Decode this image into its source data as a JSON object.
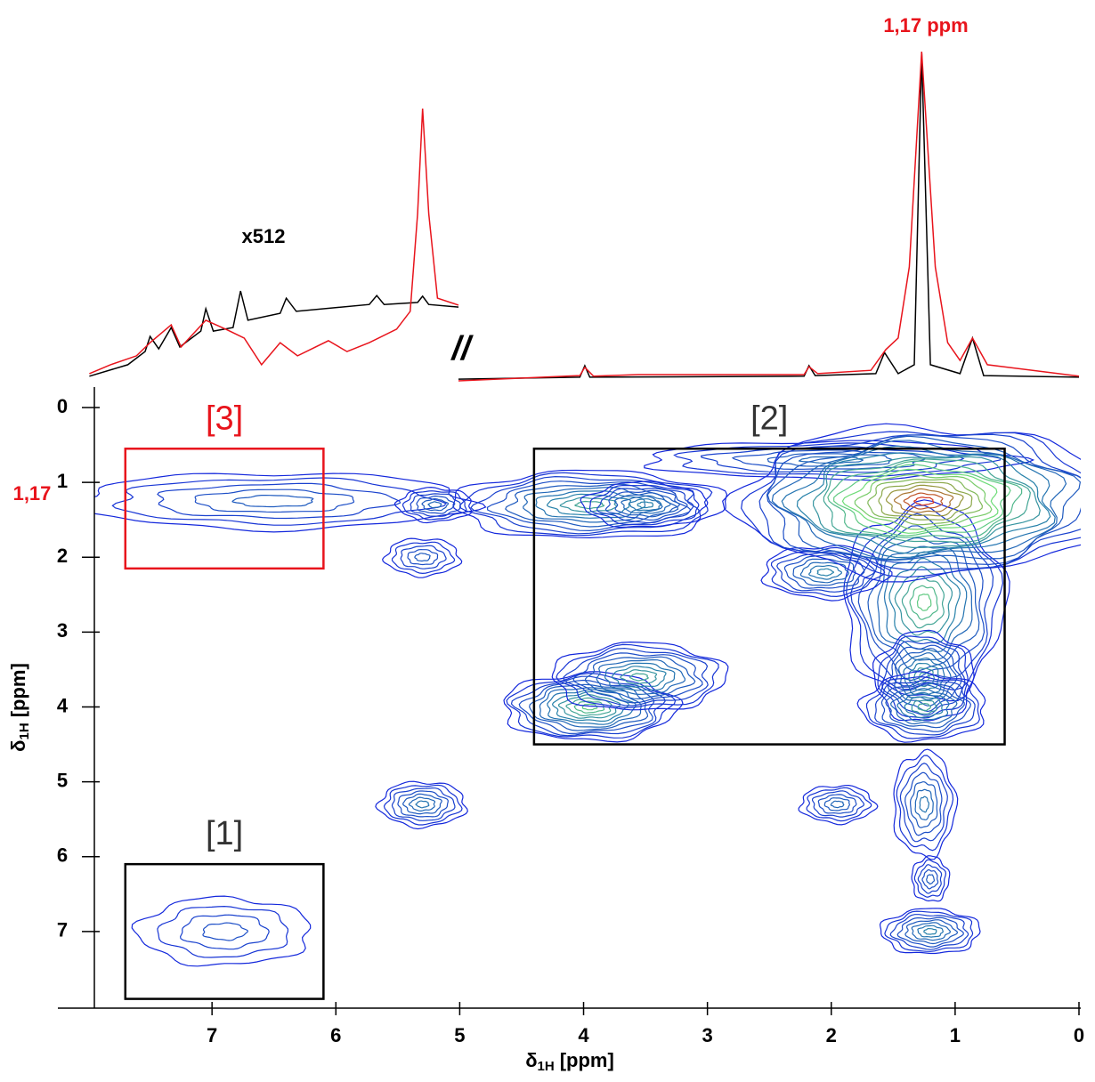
{
  "chart_data": [
    {
      "type": "spectrum",
      "annotation": "x512",
      "peak_label": "1,17 ppm",
      "break_label": "//",
      "xlim": [
        7.95,
        0
      ],
      "ylim": [
        0,
        100
      ],
      "series": [
        {
          "color": "#000000",
          "x": [
            7.99,
            7.68,
            7.54,
            7.5,
            7.43,
            7.33,
            7.26,
            7.09,
            7.05,
            6.99,
            6.83,
            6.77,
            6.71,
            6.45,
            6.4,
            6.32,
            5.73,
            5.67,
            5.61,
            5.34,
            5.3,
            5.25,
            5.01,
            null,
            5.01,
            4.03,
            3.99,
            3.95,
            2.22,
            2.18,
            2.13,
            1.64,
            1.57,
            1.46,
            1.33,
            1.27,
            1.2,
            0.96,
            0.86,
            0.77,
            0
          ],
          "values": [
            1.4,
            4.9,
            8.9,
            13.5,
            9.7,
            16.2,
            10.3,
            15.1,
            21.9,
            15.1,
            16.2,
            27.3,
            18.4,
            20.5,
            25.1,
            21.1,
            23.2,
            25.9,
            23.2,
            23.8,
            25.7,
            23.2,
            22.4,
            null,
            0.5,
            1.1,
            4.6,
            1.1,
            1.4,
            4.6,
            1.6,
            2.2,
            8.6,
            2.2,
            4.9,
            99.5,
            4.9,
            2.2,
            13,
            1.6,
            1.1
          ]
        },
        {
          "color": "#e8141c",
          "x": [
            7.99,
            7.82,
            7.61,
            7.5,
            7.33,
            7.25,
            7.05,
            6.89,
            6.74,
            6.6,
            6.45,
            6.31,
            6.06,
            5.91,
            5.73,
            5.51,
            5.4,
            5.34,
            5.3,
            5.25,
            5.18,
            5.01,
            null,
            5.01,
            4.03,
            3.99,
            3.92,
            3.56,
            2.22,
            2.18,
            2.11,
            1.68,
            1.56,
            1.46,
            1.37,
            1.27,
            1.16,
            1.06,
            0.96,
            0.86,
            0.74,
            0
          ],
          "values": [
            2.2,
            4.9,
            7.6,
            11.6,
            17,
            10.3,
            18.4,
            15.7,
            13,
            4.9,
            11.6,
            7.6,
            12.2,
            8.9,
            11.6,
            15.7,
            21.1,
            50.8,
            82.7,
            50.8,
            25.1,
            23,
            null,
            0,
            1.6,
            4.1,
            1.4,
            1.9,
            1.9,
            4.3,
            2.2,
            3.2,
            9.5,
            13,
            34.6,
            100,
            34.6,
            11.6,
            6.2,
            13,
            4.9,
            1.4
          ]
        }
      ]
    },
    {
      "type": "contour",
      "xlabel": {
        "symbol": "δ",
        "subscript": "1H",
        "unit": "[ppm]"
      },
      "ylabel": {
        "symbol": "δ",
        "subscript": "1H",
        "unit": "[ppm]"
      },
      "xlim": [
        7.95,
        0
      ],
      "xticks": [
        7,
        6,
        5,
        4,
        3,
        2,
        1,
        0
      ],
      "ylim": [
        0,
        8
      ],
      "yticks": [
        0,
        1,
        2,
        3,
        4,
        5,
        6,
        7
      ],
      "y_annotation": {
        "value": 1.17,
        "label": "1,17",
        "color": "#e8141c"
      },
      "boxes": [
        {
          "label": "[1]",
          "x": [
            7.7,
            6.1
          ],
          "y": [
            6.1,
            7.9
          ],
          "color": "#000000"
        },
        {
          "label": "[2]",
          "x": [
            4.4,
            0.6
          ],
          "y": [
            0.55,
            4.5
          ],
          "color": "#000000"
        },
        {
          "label": "[3]",
          "x": [
            7.7,
            6.1
          ],
          "y": [
            0.55,
            2.15
          ],
          "color": "#e8141c"
        }
      ],
      "peaks": [
        {
          "x": 6.5,
          "y": 1.25,
          "levels": 5,
          "width": 3.2,
          "height": 0.75
        },
        {
          "x": 2.0,
          "y": 0.7,
          "levels": 6,
          "width": 3.0,
          "height": 0.5
        },
        {
          "x": 1.25,
          "y": 2.6,
          "levels": 12,
          "width": 1.3,
          "height": 2.6
        },
        {
          "x": 3.95,
          "y": 1.3,
          "levels": 10,
          "width": 2.2,
          "height": 0.9
        },
        {
          "x": 3.5,
          "y": 1.3,
          "levels": 8,
          "width": 1.0,
          "height": 0.6
        },
        {
          "x": 5.2,
          "y": 1.3,
          "levels": 6,
          "width": 0.6,
          "height": 0.45
        },
        {
          "x": 5.3,
          "y": 2.0,
          "levels": 5,
          "width": 0.6,
          "height": 0.5
        },
        {
          "x": 2.05,
          "y": 2.2,
          "levels": 8,
          "width": 1.0,
          "height": 0.7
        },
        {
          "x": 3.95,
          "y": 4.0,
          "levels": 12,
          "width": 1.4,
          "height": 0.9
        },
        {
          "x": 3.55,
          "y": 3.6,
          "levels": 10,
          "width": 1.4,
          "height": 0.9
        },
        {
          "x": 1.25,
          "y": 3.6,
          "levels": 10,
          "width": 0.8,
          "height": 1.2
        },
        {
          "x": 1.25,
          "y": 4.0,
          "levels": 10,
          "width": 1.0,
          "height": 0.9
        },
        {
          "x": 5.3,
          "y": 5.3,
          "levels": 7,
          "width": 0.7,
          "height": 0.6
        },
        {
          "x": 1.95,
          "y": 5.3,
          "levels": 6,
          "width": 0.6,
          "height": 0.5
        },
        {
          "x": 1.25,
          "y": 5.3,
          "levels": 7,
          "width": 0.5,
          "height": 1.4
        },
        {
          "x": 1.2,
          "y": 6.3,
          "levels": 5,
          "width": 0.3,
          "height": 0.6
        },
        {
          "x": 1.2,
          "y": 7.0,
          "levels": 8,
          "width": 0.8,
          "height": 0.6
        },
        {
          "x": 6.9,
          "y": 7.0,
          "levels": 4,
          "width": 1.4,
          "height": 0.9
        },
        {
          "x": 1.25,
          "y": 1.25,
          "levels": 20,
          "width": 3.0,
          "height": 2.0
        }
      ]
    }
  ]
}
